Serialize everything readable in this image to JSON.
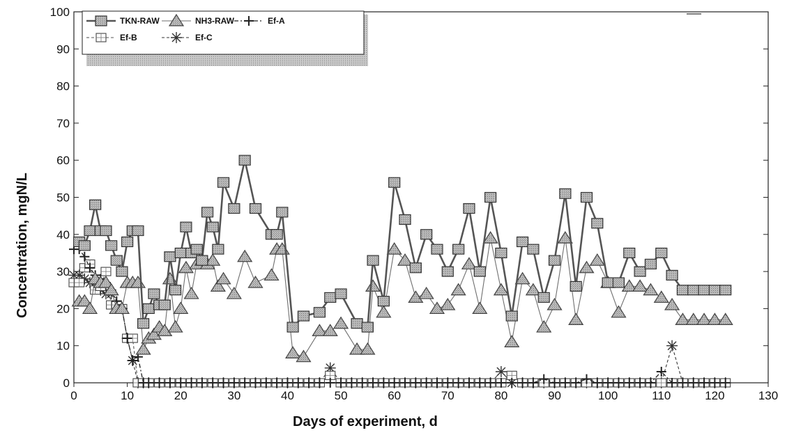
{
  "chart_data": {
    "type": "line",
    "title": "",
    "xlabel": "Days of experiment, d",
    "ylabel": "Concentration, mgN/L",
    "xlim": [
      0,
      130
    ],
    "ylim": [
      0,
      100
    ],
    "xticks": [
      "0",
      "10",
      "20",
      "30",
      "40",
      "50",
      "60",
      "70",
      "80",
      "90",
      "100",
      "110",
      "120",
      "130"
    ],
    "yticks": [
      "0",
      "10",
      "20",
      "30",
      "40",
      "50",
      "60",
      "70",
      "80",
      "90",
      "100"
    ],
    "grid": false,
    "legend_position": "top-left",
    "colors": {
      "tkn": "#555555",
      "nh3": "#6e6e6e",
      "efa": "#222222",
      "efb": "#555555",
      "efc": "#333333"
    },
    "series": [
      {
        "name": "TKN-RAW",
        "marker": "filled-square",
        "x": [
          1,
          2,
          3,
          4,
          5,
          6,
          7,
          8,
          9,
          10,
          11,
          12,
          13,
          14,
          15,
          16,
          17,
          18,
          19,
          20,
          21,
          22,
          23,
          24,
          25,
          26,
          27,
          28,
          30,
          32,
          34,
          37,
          38,
          39,
          41,
          43,
          46,
          48,
          50,
          53,
          55,
          56,
          58,
          60,
          62,
          64,
          66,
          68,
          70,
          72,
          74,
          76,
          78,
          80,
          82,
          84,
          86,
          88,
          90,
          92,
          94,
          96,
          98,
          100,
          102,
          104,
          106,
          108,
          110,
          112,
          114,
          116,
          118,
          120,
          122
        ],
        "values": [
          38,
          37,
          41,
          48,
          41,
          41,
          37,
          33,
          30,
          38,
          41,
          41,
          16,
          20,
          24,
          21,
          21,
          34,
          25,
          35,
          42,
          35,
          36,
          33,
          46,
          42,
          36,
          54,
          47,
          60,
          47,
          40,
          40,
          46,
          15,
          18,
          19,
          23,
          24,
          16,
          15,
          33,
          22,
          54,
          44,
          31,
          40,
          36,
          30,
          36,
          47,
          30,
          50,
          35,
          18,
          38,
          36,
          23,
          33,
          51,
          26,
          50,
          43,
          27,
          27,
          35,
          30,
          32,
          35,
          29,
          25,
          25,
          25,
          25,
          25
        ]
      },
      {
        "name": "NH3-RAW",
        "marker": "filled-triangle",
        "x": [
          1,
          2,
          3,
          4,
          5,
          6,
          7,
          8,
          9,
          10,
          11,
          12,
          13,
          14,
          15,
          16,
          17,
          18,
          19,
          20,
          21,
          22,
          23,
          24,
          25,
          26,
          27,
          28,
          30,
          32,
          34,
          37,
          38,
          39,
          41,
          43,
          46,
          48,
          50,
          53,
          55,
          56,
          58,
          60,
          62,
          64,
          66,
          68,
          70,
          72,
          74,
          76,
          78,
          80,
          82,
          84,
          86,
          88,
          90,
          92,
          94,
          96,
          98,
          100,
          102,
          104,
          106,
          108,
          110,
          112,
          114,
          116,
          118,
          120,
          122
        ],
        "values": [
          22,
          22,
          20,
          28,
          27,
          27,
          25,
          20,
          20,
          27,
          27,
          27,
          9,
          12,
          13,
          15,
          14,
          28,
          15,
          20,
          31,
          24,
          32,
          33,
          32,
          33,
          26,
          28,
          24,
          34,
          27,
          29,
          36,
          36,
          8,
          7,
          14,
          14,
          16,
          9,
          9,
          26,
          19,
          36,
          33,
          23,
          24,
          20,
          21,
          25,
          32,
          20,
          39,
          25,
          11,
          28,
          25,
          15,
          21,
          39,
          17,
          31,
          33,
          27,
          19,
          26,
          26,
          25,
          23,
          21,
          17,
          17,
          17,
          17,
          17
        ]
      },
      {
        "name": "Ef-A",
        "marker": "plus",
        "x": [
          0,
          1,
          2,
          3,
          4,
          5,
          6,
          7,
          8,
          9,
          10,
          11,
          12,
          13,
          14,
          16,
          18,
          20,
          22,
          24,
          26,
          28,
          30,
          32,
          34,
          36,
          38,
          40,
          42,
          44,
          46,
          48,
          50,
          52,
          54,
          56,
          58,
          60,
          62,
          64,
          66,
          68,
          70,
          72,
          74,
          76,
          78,
          80,
          82,
          84,
          86,
          88,
          90,
          92,
          94,
          96,
          98,
          100,
          102,
          104,
          106,
          108,
          110,
          112,
          114,
          116,
          118,
          120,
          122
        ],
        "values": [
          36,
          36,
          34,
          31,
          29,
          28,
          27,
          25,
          22,
          20,
          12,
          6,
          7,
          0,
          0,
          0,
          0,
          0,
          0,
          0,
          0,
          0,
          0,
          0,
          0,
          0,
          0,
          0,
          0,
          0,
          0,
          0,
          0,
          0,
          0,
          0,
          0,
          0,
          0,
          0,
          0,
          0,
          0,
          0,
          0,
          0,
          0,
          0,
          0,
          0,
          0,
          1,
          0,
          0,
          0,
          1,
          0,
          0,
          0,
          0,
          0,
          0,
          3,
          0,
          0,
          0,
          0,
          0,
          0
        ]
      },
      {
        "name": "Ef-B",
        "marker": "open-square",
        "x": [
          0,
          1,
          2,
          3,
          4,
          5,
          6,
          7,
          8,
          9,
          10,
          11,
          12,
          13,
          14,
          16,
          18,
          20,
          22,
          24,
          26,
          28,
          30,
          32,
          34,
          36,
          38,
          40,
          42,
          44,
          46,
          48,
          50,
          52,
          54,
          56,
          58,
          60,
          62,
          64,
          66,
          68,
          70,
          72,
          74,
          76,
          78,
          80,
          82,
          84,
          86,
          88,
          90,
          92,
          94,
          96,
          98,
          100,
          102,
          104,
          106,
          108,
          110,
          112,
          114,
          116,
          118,
          120,
          122
        ],
        "values": [
          27,
          27,
          31,
          32,
          25,
          26,
          30,
          21,
          21,
          20,
          12,
          12,
          0,
          0,
          0,
          0,
          0,
          0,
          0,
          0,
          0,
          0,
          0,
          0,
          0,
          0,
          0,
          0,
          0,
          0,
          0,
          2,
          0,
          0,
          0,
          0,
          0,
          0,
          0,
          0,
          0,
          0,
          0,
          0,
          0,
          0,
          0,
          0,
          2,
          0,
          0,
          0,
          0,
          0,
          0,
          0,
          0,
          0,
          0,
          0,
          0,
          0,
          0,
          0,
          0,
          0,
          0,
          0,
          0
        ]
      },
      {
        "name": "Ef-C",
        "marker": "asterisk",
        "x": [
          0,
          1,
          2,
          3,
          4,
          5,
          6,
          7,
          8,
          9,
          10,
          11,
          12,
          13,
          14,
          16,
          18,
          20,
          22,
          24,
          26,
          28,
          30,
          32,
          34,
          36,
          38,
          40,
          42,
          44,
          46,
          48,
          50,
          52,
          54,
          56,
          58,
          60,
          62,
          64,
          66,
          68,
          70,
          72,
          74,
          76,
          78,
          80,
          82,
          84,
          86,
          88,
          90,
          92,
          94,
          96,
          98,
          100,
          102,
          104,
          106,
          108,
          110,
          112,
          114,
          116,
          118,
          120,
          122
        ],
        "values": [
          29,
          29,
          28,
          27,
          26,
          25,
          24,
          24,
          21,
          20,
          12,
          6,
          0,
          0,
          0,
          0,
          0,
          0,
          0,
          0,
          0,
          0,
          0,
          0,
          0,
          0,
          0,
          0,
          0,
          0,
          0,
          4,
          0,
          0,
          0,
          0,
          0,
          0,
          0,
          0,
          0,
          0,
          0,
          0,
          0,
          0,
          0,
          3,
          0,
          0,
          0,
          0,
          0,
          0,
          0,
          0,
          0,
          0,
          0,
          0,
          0,
          0,
          0,
          10,
          0,
          0,
          0,
          0,
          0
        ]
      }
    ]
  }
}
